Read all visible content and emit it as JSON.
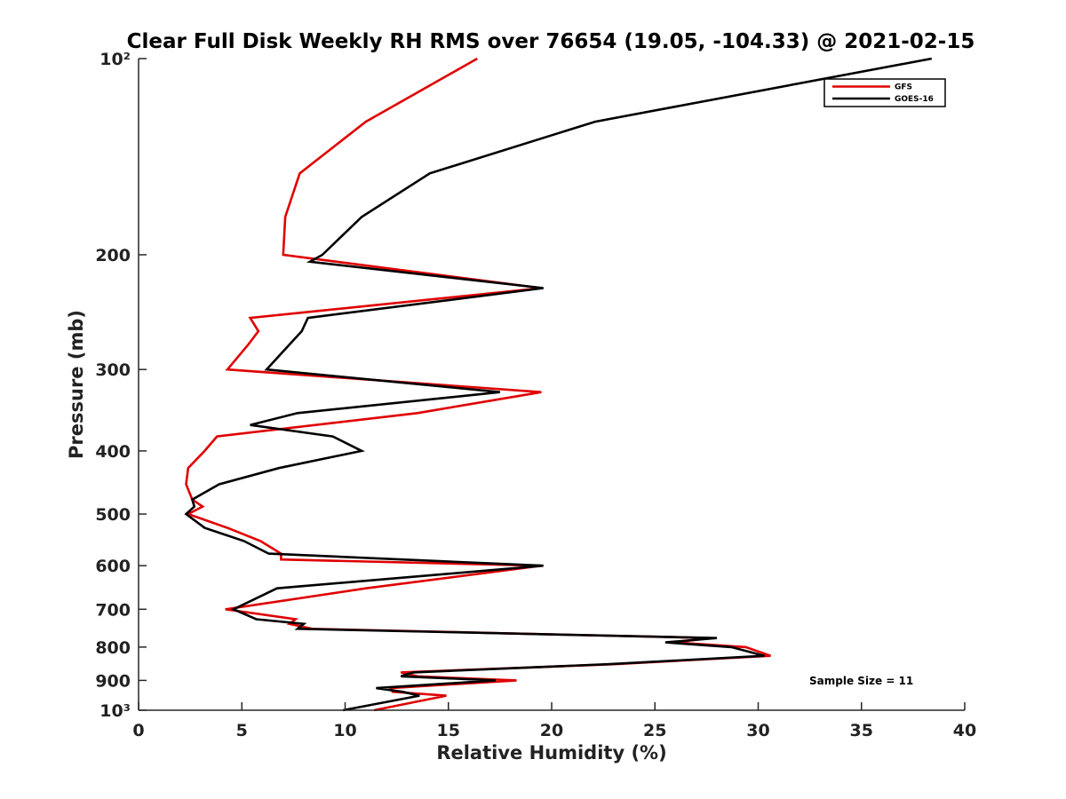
{
  "chart_data": {
    "type": "line",
    "title": "Clear Full Disk Weekly RH RMS over 76654 (19.05, -104.33) @ 2021-02-15",
    "xlabel": "Relative Humidity (%)",
    "ylabel": "Pressure (mb)",
    "xlim": [
      0,
      40
    ],
    "ylim": [
      100,
      1000
    ],
    "yscale": "log",
    "yreversed": true,
    "xticks": [
      0,
      5,
      10,
      15,
      20,
      25,
      30,
      35,
      40
    ],
    "xtick_labels": [
      "0",
      "5",
      "10",
      "15",
      "20",
      "25",
      "30",
      "35",
      "40"
    ],
    "yticks": [
      100,
      200,
      300,
      400,
      500,
      600,
      700,
      800,
      900,
      1000
    ],
    "ytick_labels": [
      "10²",
      "200",
      "300",
      "400",
      "500",
      "600",
      "700",
      "800",
      "900",
      "10³"
    ],
    "legend_position": "top-right",
    "annotation": "Sample Size = 11",
    "series": [
      {
        "name": "GFS",
        "color": "#e00000",
        "points": [
          [
            16.4,
            100
          ],
          [
            11.0,
            125
          ],
          [
            7.8,
            150
          ],
          [
            7.1,
            175
          ],
          [
            7.0,
            200
          ],
          [
            19.5,
            225
          ],
          [
            5.4,
            250
          ],
          [
            5.8,
            262
          ],
          [
            5.3,
            275
          ],
          [
            4.3,
            300
          ],
          [
            19.5,
            325
          ],
          [
            13.5,
            350
          ],
          [
            3.8,
            380
          ],
          [
            3.2,
            400
          ],
          [
            2.4,
            425
          ],
          [
            2.3,
            450
          ],
          [
            2.6,
            475
          ],
          [
            3.1,
            487
          ],
          [
            2.4,
            500
          ],
          [
            4.3,
            525
          ],
          [
            5.9,
            550
          ],
          [
            6.9,
            575
          ],
          [
            6.9,
            587
          ],
          [
            19.5,
            600
          ],
          [
            11.0,
            650
          ],
          [
            4.2,
            700
          ],
          [
            7.6,
            725
          ],
          [
            7.3,
            737
          ],
          [
            8.4,
            750
          ],
          [
            27.7,
            775
          ],
          [
            25.9,
            787
          ],
          [
            29.4,
            800
          ],
          [
            30.6,
            825
          ],
          [
            23.0,
            850
          ],
          [
            12.7,
            875
          ],
          [
            13.5,
            887
          ],
          [
            18.3,
            900
          ],
          [
            12.2,
            925
          ],
          [
            12.3,
            937
          ],
          [
            14.9,
            950
          ],
          [
            11.4,
            1000
          ]
        ]
      },
      {
        "name": "GOES-16",
        "color": "#000000",
        "points": [
          [
            38.4,
            100
          ],
          [
            22.1,
            125
          ],
          [
            14.1,
            150
          ],
          [
            10.8,
            175
          ],
          [
            8.9,
            200
          ],
          [
            8.3,
            205
          ],
          [
            19.6,
            225
          ],
          [
            8.2,
            250
          ],
          [
            7.9,
            262
          ],
          [
            6.2,
            300
          ],
          [
            17.5,
            325
          ],
          [
            7.7,
            350
          ],
          [
            5.4,
            365
          ],
          [
            9.4,
            380
          ],
          [
            10.8,
            400
          ],
          [
            6.8,
            425
          ],
          [
            3.9,
            450
          ],
          [
            2.6,
            475
          ],
          [
            2.7,
            487
          ],
          [
            2.3,
            500
          ],
          [
            3.2,
            525
          ],
          [
            5.1,
            550
          ],
          [
            6.3,
            575
          ],
          [
            19.6,
            600
          ],
          [
            6.7,
            650
          ],
          [
            4.6,
            700
          ],
          [
            5.7,
            725
          ],
          [
            8.0,
            737
          ],
          [
            7.7,
            750
          ],
          [
            28.0,
            775
          ],
          [
            25.5,
            787
          ],
          [
            28.7,
            800
          ],
          [
            30.3,
            825
          ],
          [
            22.7,
            850
          ],
          [
            13.3,
            875
          ],
          [
            12.7,
            887
          ],
          [
            17.3,
            900
          ],
          [
            11.5,
            925
          ],
          [
            12.8,
            937
          ],
          [
            13.6,
            950
          ],
          [
            9.9,
            1000
          ]
        ]
      }
    ]
  }
}
